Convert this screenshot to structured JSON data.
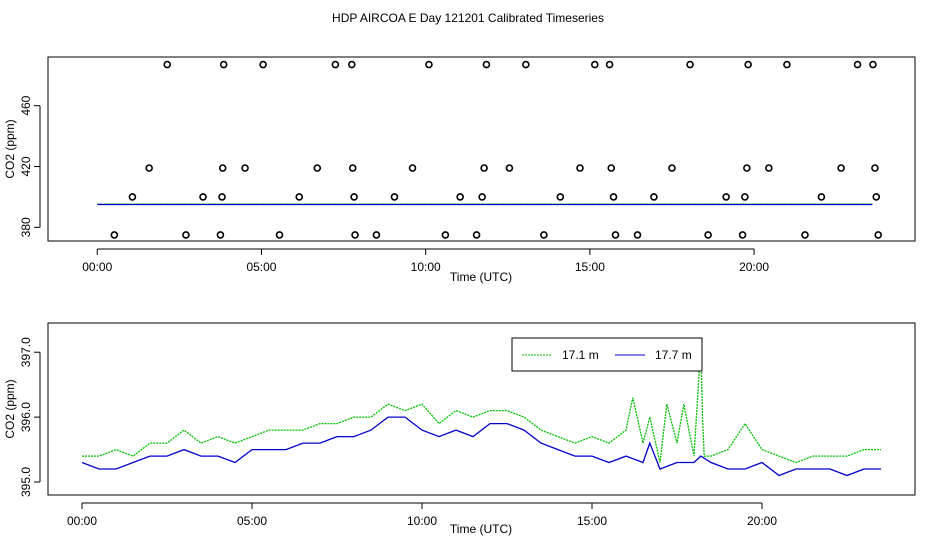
{
  "figure": {
    "title": "HDP AIRCOA E  Day 121201  Calibrated Timeseries"
  },
  "chart_data": [
    {
      "type": "scatter",
      "xlabel": "Time (UTC)",
      "ylabel": "CO2 (ppm)",
      "xlim": [
        -1.5,
        24.9
      ],
      "ylim": [
        371,
        492
      ],
      "xticks": [
        {
          "v": 0,
          "label": "00:00"
        },
        {
          "v": 5,
          "label": "05:00"
        },
        {
          "v": 10,
          "label": "10:00"
        },
        {
          "v": 15,
          "label": "15:00"
        },
        {
          "v": 20,
          "label": "20:00"
        }
      ],
      "yticks": [
        {
          "v": 380,
          "label": "380"
        },
        {
          "v": 420,
          "label": "420"
        },
        {
          "v": 460,
          "label": "460"
        }
      ],
      "calibration_points": {
        "x": [
          0.52,
          1.07,
          1.58,
          2.13,
          2.7,
          3.22,
          3.75,
          3.8,
          3.82,
          3.85,
          4.5,
          5.05,
          5.55,
          6.15,
          6.7,
          7.25,
          7.75,
          7.78,
          7.82,
          7.85,
          8.5,
          9.05,
          9.6,
          10.1,
          10.6,
          11.05,
          11.55,
          11.72,
          11.78,
          11.85,
          12.55,
          13.05,
          13.6,
          14.1,
          14.7,
          15.15,
          15.6,
          15.65,
          15.72,
          15.78,
          16.45,
          16.95,
          17.5,
          18.05,
          18.6,
          19.15,
          19.65,
          19.72,
          19.78,
          19.82,
          20.45,
          21.0,
          21.55,
          22.05,
          22.65,
          23.15,
          23.62,
          23.68,
          23.72,
          23.78
        ],
        "y": [
          375,
          400,
          419,
          487,
          375,
          400,
          375,
          400,
          419,
          487,
          419,
          487,
          375,
          400,
          419,
          487,
          487,
          419,
          400,
          375,
          375,
          400,
          419,
          487,
          375,
          400,
          375,
          400,
          419,
          487,
          419,
          487,
          375,
          400,
          419,
          487,
          487,
          419,
          400,
          375,
          375,
          400,
          419,
          487,
          375,
          400,
          375,
          400,
          419,
          487,
          419,
          487,
          375,
          400,
          419,
          487,
          487,
          419,
          400,
          375
        ]
      },
      "series": [
        {
          "name": "",
          "color": "#00c000",
          "x": [
            0,
            23.6
          ],
          "y": [
            395.2,
            395.2
          ]
        },
        {
          "name": "",
          "color": "#0000cc",
          "x": [
            0,
            23.6
          ],
          "y": [
            395.0,
            395.0
          ]
        }
      ]
    },
    {
      "type": "line",
      "xlabel": "Time (UTC)",
      "ylabel": "CO2 (ppm)",
      "xlim": [
        -1.0,
        24.5
      ],
      "ylim": [
        394.8,
        397.45
      ],
      "xticks": [
        {
          "v": 0,
          "label": "00:00"
        },
        {
          "v": 5,
          "label": "05:00"
        },
        {
          "v": 10,
          "label": "10:00"
        },
        {
          "v": 15,
          "label": "15:00"
        },
        {
          "v": 20,
          "label": "20:00"
        }
      ],
      "yticks": [
        {
          "v": 395.0,
          "label": "395.0"
        },
        {
          "v": 396.0,
          "label": "396.0"
        },
        {
          "v": 397.0,
          "label": "397.0"
        }
      ],
      "legend": {
        "position": "top-right",
        "entries": [
          "17.1 m",
          "17.7 m"
        ]
      },
      "series": [
        {
          "name": "17.1 m",
          "color": "#00c000",
          "x": [
            0,
            0.5,
            1,
            1.5,
            2,
            2.5,
            3,
            3.5,
            4,
            4.5,
            5,
            5.5,
            6,
            6.5,
            7,
            7.5,
            8,
            8.5,
            9,
            9.5,
            10,
            10.5,
            11,
            11.5,
            12,
            12.5,
            13,
            13.5,
            14,
            14.5,
            15,
            15.5,
            16,
            16.2,
            16.5,
            16.7,
            17,
            17.2,
            17.5,
            17.7,
            18,
            18.2,
            18.25,
            18.3,
            18.5,
            19,
            19.5,
            20,
            20.5,
            21,
            21.5,
            22,
            22.5,
            23,
            23.5
          ],
          "y": [
            395.4,
            395.4,
            395.5,
            395.4,
            395.6,
            395.6,
            395.8,
            395.6,
            395.7,
            395.6,
            395.7,
            395.8,
            395.8,
            395.8,
            395.9,
            395.9,
            396.0,
            396.0,
            396.2,
            396.1,
            396.2,
            395.9,
            396.1,
            396.0,
            396.1,
            396.1,
            396.0,
            395.8,
            395.7,
            395.6,
            395.7,
            395.6,
            395.8,
            396.3,
            395.6,
            396.0,
            395.3,
            396.2,
            395.6,
            396.2,
            395.4,
            397.1,
            396.0,
            395.4,
            395.4,
            395.5,
            395.9,
            395.5,
            395.4,
            395.3,
            395.4,
            395.4,
            395.4,
            395.5,
            395.5
          ]
        },
        {
          "name": "17.7 m",
          "color": "#0000cc",
          "x": [
            0,
            0.5,
            1,
            1.5,
            2,
            2.5,
            3,
            3.5,
            4,
            4.5,
            5,
            5.5,
            6,
            6.5,
            7,
            7.5,
            8,
            8.5,
            9,
            9.5,
            10,
            10.5,
            11,
            11.5,
            12,
            12.5,
            13,
            13.5,
            14,
            14.5,
            15,
            15.5,
            16,
            16.5,
            16.7,
            17,
            17.5,
            18,
            18.2,
            18.5,
            19,
            19.5,
            20,
            20.5,
            21,
            21.5,
            22,
            22.5,
            23,
            23.5
          ],
          "y": [
            395.3,
            395.2,
            395.2,
            395.3,
            395.4,
            395.4,
            395.5,
            395.4,
            395.4,
            395.3,
            395.5,
            395.5,
            395.5,
            395.6,
            395.6,
            395.7,
            395.7,
            395.8,
            396.0,
            396.0,
            395.8,
            395.7,
            395.8,
            395.7,
            395.9,
            395.9,
            395.8,
            395.6,
            395.5,
            395.4,
            395.4,
            395.3,
            395.4,
            395.3,
            395.6,
            395.2,
            395.3,
            395.3,
            395.4,
            395.3,
            395.2,
            395.2,
            395.3,
            395.1,
            395.2,
            395.2,
            395.2,
            395.1,
            395.2,
            395.2
          ]
        }
      ]
    }
  ]
}
